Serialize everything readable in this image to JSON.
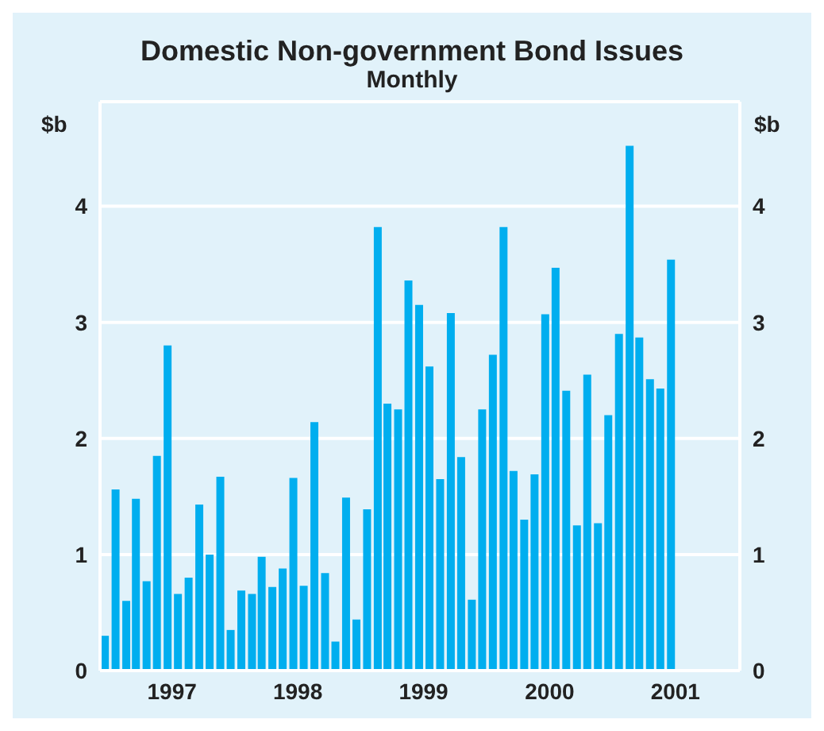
{
  "chart_data": {
    "type": "bar",
    "title": "Domestic Non-government Bond Issues",
    "subtitle": "Monthly",
    "ylabel": "$b",
    "y2label": "$b",
    "x": [
      "1996-12",
      "1997-01",
      "1997-02",
      "1997-03",
      "1997-04",
      "1997-05",
      "1997-06",
      "1997-07",
      "1997-08",
      "1997-09",
      "1997-10",
      "1997-11",
      "1997-12",
      "1998-01",
      "1998-02",
      "1998-03",
      "1998-04",
      "1998-05",
      "1998-06",
      "1998-07",
      "1998-08",
      "1998-09",
      "1998-10",
      "1998-11",
      "1998-12",
      "1999-01",
      "1999-02",
      "1999-03",
      "1999-04",
      "1999-05",
      "1999-06",
      "1999-07",
      "1999-08",
      "1999-09",
      "1999-10",
      "1999-11",
      "1999-12",
      "2000-01",
      "2000-02",
      "2000-03",
      "2000-04",
      "2000-05",
      "2000-06",
      "2000-07",
      "2000-08",
      "2000-09",
      "2000-10",
      "2000-11",
      "2000-12",
      "2001-01",
      "2001-02",
      "2001-03",
      "2001-04",
      "2001-05",
      "2001-06"
    ],
    "values": [
      0.3,
      1.56,
      0.6,
      1.48,
      0.77,
      1.85,
      2.8,
      0.66,
      0.8,
      1.43,
      1.0,
      1.67,
      0.35,
      0.69,
      0.66,
      0.98,
      0.72,
      0.88,
      1.66,
      0.73,
      2.14,
      0.84,
      0.25,
      1.49,
      0.44,
      1.39,
      3.82,
      2.3,
      2.25,
      3.36,
      3.15,
      2.62,
      1.65,
      3.08,
      1.84,
      0.61,
      2.25,
      2.72,
      3.82,
      1.72,
      1.3,
      1.69,
      3.07,
      3.47,
      2.41,
      1.25,
      2.55,
      1.27,
      2.2,
      2.9,
      4.52,
      2.87,
      2.51,
      2.43,
      3.54
    ],
    "color": "#00aeef",
    "xlim": [
      "1996-11-19",
      "2001-12-20"
    ],
    "xticks": [
      {
        "value": "1997-06-16",
        "label": "1997"
      },
      {
        "value": "1998-06-16",
        "label": "1998"
      },
      {
        "value": "1999-06-16",
        "label": "1999"
      },
      {
        "value": "2000-06-16",
        "label": "2000"
      },
      {
        "value": "2001-06-16",
        "label": "2001"
      }
    ],
    "ylim": [
      0,
      4.9
    ],
    "yticks": [
      0,
      1,
      2,
      3,
      4
    ],
    "y2lim": [
      0,
      4.9
    ],
    "y2ticks": [
      0,
      1,
      2,
      3,
      4
    ],
    "grid": "y",
    "legend": false
  }
}
